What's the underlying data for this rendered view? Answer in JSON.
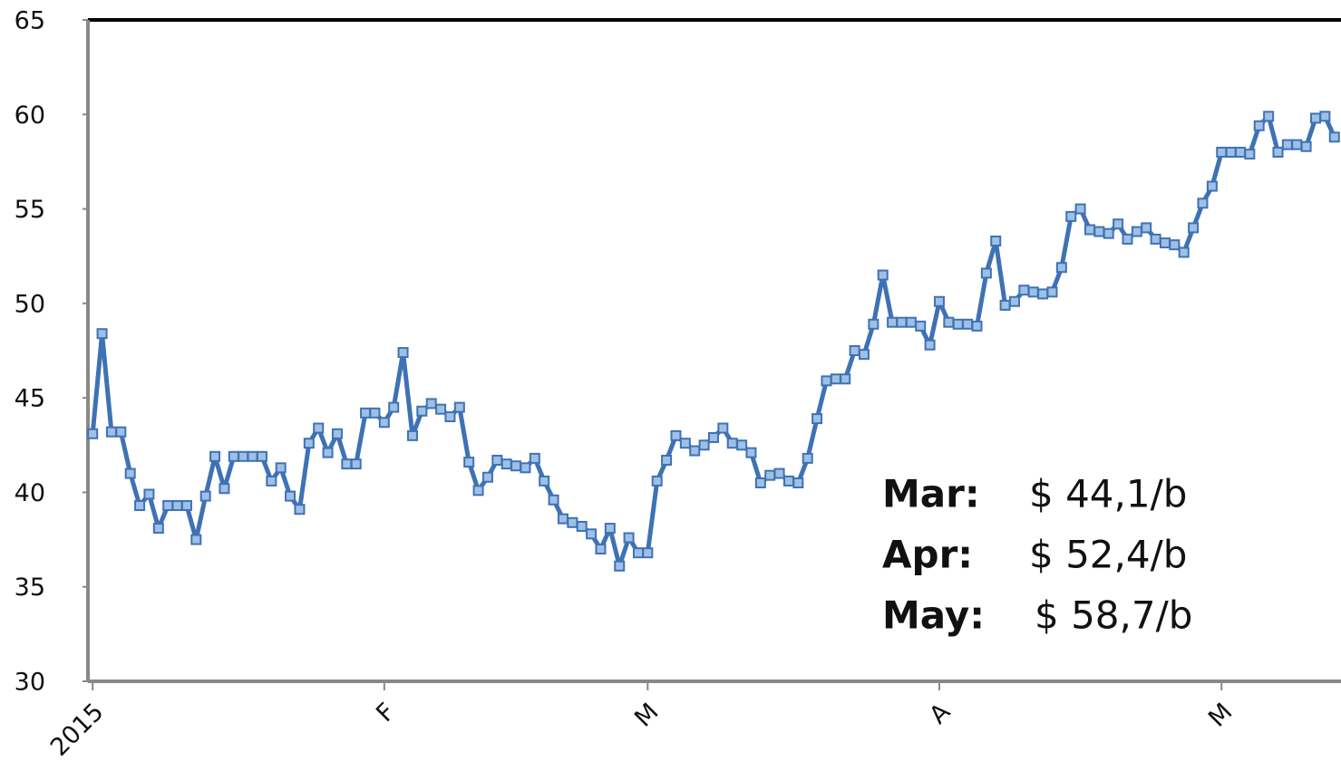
{
  "chart_data": {
    "type": "line",
    "x": [
      1,
      2,
      3,
      4,
      5,
      6,
      7,
      8,
      9,
      10,
      11,
      12,
      13,
      14,
      15,
      16,
      17,
      18,
      19,
      20,
      21,
      22,
      23,
      24,
      25,
      26,
      27,
      28,
      29,
      30,
      31,
      32,
      33,
      34,
      35,
      36,
      37,
      38,
      39,
      40,
      41,
      42,
      43,
      44,
      45,
      46,
      47,
      48,
      49,
      50,
      51,
      52,
      53,
      54,
      55,
      56,
      57,
      58,
      59,
      60,
      61,
      62,
      63,
      64,
      65,
      66,
      67,
      68,
      69,
      70,
      71,
      72,
      73,
      74,
      75,
      76,
      77,
      78,
      79,
      80,
      81,
      82,
      83,
      84,
      85,
      86,
      87,
      88,
      89,
      90,
      91,
      92,
      93,
      94,
      95,
      96,
      97,
      98,
      99,
      100,
      101,
      102,
      103,
      104,
      105,
      106,
      107,
      108,
      109,
      110,
      111,
      112,
      113,
      114,
      115,
      116,
      117,
      118,
      119,
      120,
      121,
      122,
      123,
      124,
      125,
      126,
      127,
      128,
      129,
      130,
      131,
      132,
      133
    ],
    "series": [
      {
        "color": "#3f72b4",
        "values": [
          43.1,
          48.4,
          43.2,
          43.2,
          41,
          39.3,
          39.9,
          38.1,
          39.3,
          39.3,
          39.3,
          37.5,
          39.8,
          41.9,
          40.2,
          41.9,
          41.9,
          41.9,
          41.9,
          40.6,
          41.3,
          39.8,
          39.1,
          42.6,
          43.4,
          42.1,
          43.1,
          41.5,
          41.5,
          44.2,
          44.2,
          43.7,
          44.5,
          47.4,
          43,
          44.3,
          44.7,
          44.4,
          44,
          44.5,
          41.6,
          40.1,
          40.8,
          41.7,
          41.5,
          41.4,
          41.3,
          41.8,
          40.6,
          39.6,
          38.6,
          38.4,
          38.2,
          37.8,
          37,
          38.1,
          36.1,
          37.6,
          36.8,
          36.8,
          40.6,
          41.7,
          43,
          42.6,
          42.2,
          42.5,
          42.9,
          43.4,
          42.6,
          42.5,
          42.1,
          40.5,
          40.9,
          41,
          40.6,
          40.5,
          41.8,
          43.9,
          45.9,
          46,
          46,
          47.5,
          47.3,
          48.9,
          51.5,
          49,
          49,
          49,
          48.8,
          47.8,
          50.1,
          49,
          48.9,
          48.9,
          48.8,
          51.6,
          53.3,
          49.9,
          50.1,
          50.7,
          50.6,
          50.5,
          50.6,
          51.9,
          54.6,
          55,
          53.9,
          53.8,
          53.7,
          54.2,
          53.4,
          53.8,
          54,
          53.4,
          53.2,
          53.1,
          52.7,
          54,
          55.3,
          56.2,
          58,
          58,
          58,
          57.9,
          59.4,
          59.9,
          58,
          58.4,
          58.4,
          58.3,
          59.8,
          59.9,
          58.8
        ]
      }
    ],
    "xlim": [
      0.5,
      133.7
    ],
    "xticks": [
      {
        "value": 1,
        "label": "2015"
      },
      {
        "value": 32,
        "label": "F"
      },
      {
        "value": 60,
        "label": "M"
      },
      {
        "value": 91,
        "label": "A"
      },
      {
        "value": 121,
        "label": "M"
      }
    ],
    "ylim": [
      30,
      65
    ],
    "yticks": [
      30,
      35,
      40,
      45,
      50,
      55,
      60,
      65
    ],
    "annotations": [
      {
        "label": "Mar:",
        "text": "$ 44,1/b"
      },
      {
        "label": "Apr:",
        "text": "$ 52,4/b"
      },
      {
        "label": "May:",
        "text": "$ 58,7/b"
      }
    ]
  }
}
